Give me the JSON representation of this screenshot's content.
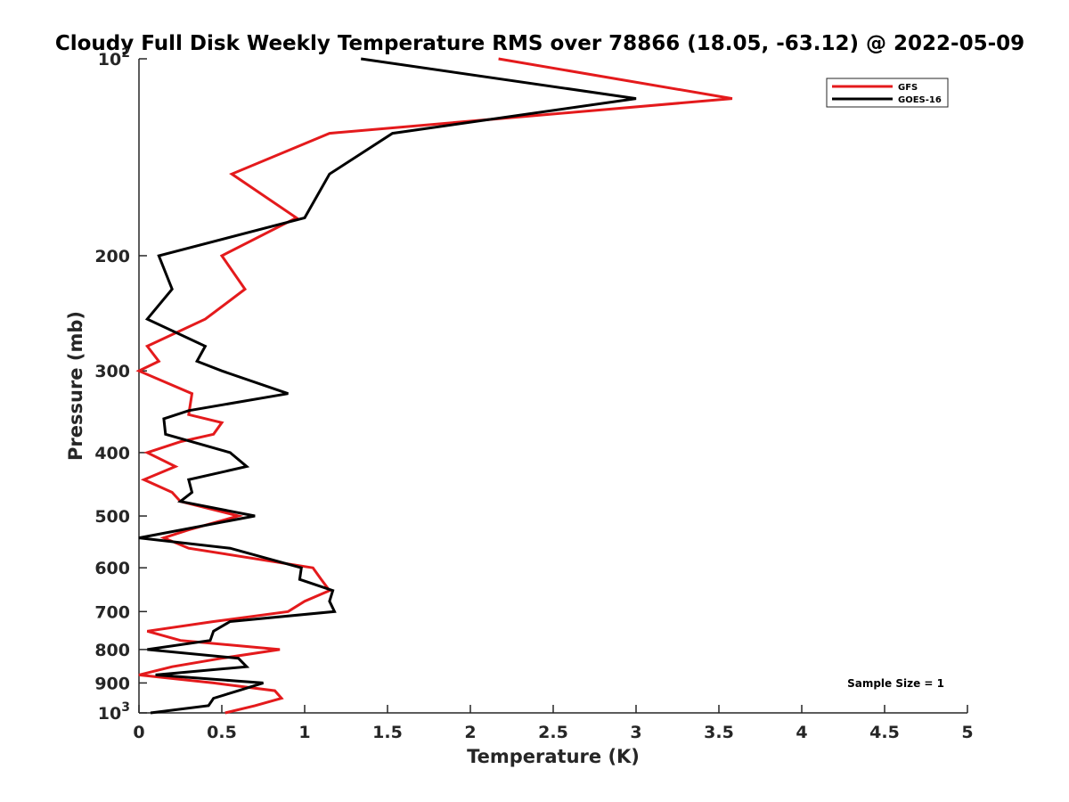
{
  "chart_data": {
    "type": "line",
    "title": "Cloudy Full Disk Weekly Temperature RMS over 78866 (18.05, -63.12) @ 2022-05-09",
    "xlabel": "Temperature (K)",
    "ylabel": "Pressure (mb)",
    "xlim": [
      0,
      5
    ],
    "ylim": [
      100,
      1000
    ],
    "y_scale": "log",
    "y_reversed": true,
    "grid": false,
    "legend_position": "top-right",
    "x_ticks": [
      0,
      0.5,
      1,
      1.5,
      2,
      2.5,
      3,
      3.5,
      4,
      4.5,
      5
    ],
    "x_tick_labels": [
      "0",
      "0.5",
      "1",
      "1.5",
      "2",
      "2.5",
      "3",
      "3.5",
      "4",
      "4.5",
      "5"
    ],
    "y_ticks": [
      {
        "value": 100,
        "base": "10",
        "exp": "2"
      },
      {
        "value": 200,
        "label": "200"
      },
      {
        "value": 300,
        "label": "300"
      },
      {
        "value": 400,
        "label": "400"
      },
      {
        "value": 500,
        "label": "500"
      },
      {
        "value": 600,
        "label": "600"
      },
      {
        "value": 700,
        "label": "700"
      },
      {
        "value": 800,
        "label": "800"
      },
      {
        "value": 900,
        "label": "900"
      },
      {
        "value": 1000,
        "base": "10",
        "exp": "3"
      }
    ],
    "series": [
      {
        "name": "GFS",
        "color": "#e41a1c",
        "points": [
          [
            2.17,
            100
          ],
          [
            3.58,
            115
          ],
          [
            1.15,
            130
          ],
          [
            0.56,
            150
          ],
          [
            0.95,
            175
          ],
          [
            0.5,
            200
          ],
          [
            0.64,
            225
          ],
          [
            0.4,
            250
          ],
          [
            0.05,
            275
          ],
          [
            0.12,
            290
          ],
          [
            0.0,
            300
          ],
          [
            0.32,
            325
          ],
          [
            0.3,
            350
          ],
          [
            0.5,
            360
          ],
          [
            0.45,
            375
          ],
          [
            0.25,
            385
          ],
          [
            0.05,
            400
          ],
          [
            0.22,
            420
          ],
          [
            0.03,
            440
          ],
          [
            0.2,
            460
          ],
          [
            0.25,
            475
          ],
          [
            0.6,
            500
          ],
          [
            0.3,
            525
          ],
          [
            0.15,
            540
          ],
          [
            0.3,
            560
          ],
          [
            1.05,
            600
          ],
          [
            1.1,
            625
          ],
          [
            1.15,
            650
          ],
          [
            1.0,
            675
          ],
          [
            0.9,
            700
          ],
          [
            0.45,
            725
          ],
          [
            0.05,
            750
          ],
          [
            0.25,
            775
          ],
          [
            0.85,
            800
          ],
          [
            0.5,
            825
          ],
          [
            0.2,
            850
          ],
          [
            0.0,
            875
          ],
          [
            0.45,
            900
          ],
          [
            0.82,
            925
          ],
          [
            0.86,
            950
          ],
          [
            0.7,
            975
          ],
          [
            0.52,
            1000
          ]
        ]
      },
      {
        "name": "GOES-16",
        "color": "#000000",
        "points": [
          [
            1.34,
            100
          ],
          [
            3.0,
            115
          ],
          [
            1.53,
            130
          ],
          [
            1.15,
            150
          ],
          [
            1.0,
            175
          ],
          [
            0.12,
            200
          ],
          [
            0.2,
            225
          ],
          [
            0.05,
            250
          ],
          [
            0.4,
            275
          ],
          [
            0.35,
            290
          ],
          [
            0.5,
            300
          ],
          [
            0.9,
            325
          ],
          [
            0.3,
            345
          ],
          [
            0.15,
            355
          ],
          [
            0.16,
            375
          ],
          [
            0.55,
            400
          ],
          [
            0.65,
            420
          ],
          [
            0.3,
            440
          ],
          [
            0.32,
            460
          ],
          [
            0.25,
            475
          ],
          [
            0.7,
            500
          ],
          [
            0.0,
            540
          ],
          [
            0.55,
            560
          ],
          [
            0.98,
            600
          ],
          [
            0.97,
            625
          ],
          [
            1.17,
            650
          ],
          [
            1.15,
            675
          ],
          [
            1.18,
            700
          ],
          [
            0.55,
            725
          ],
          [
            0.45,
            750
          ],
          [
            0.43,
            775
          ],
          [
            0.05,
            800
          ],
          [
            0.6,
            825
          ],
          [
            0.65,
            850
          ],
          [
            0.1,
            875
          ],
          [
            0.75,
            900
          ],
          [
            0.6,
            925
          ],
          [
            0.45,
            950
          ],
          [
            0.42,
            975
          ],
          [
            0.07,
            1000
          ]
        ]
      }
    ],
    "annotation": "Sample Size = 1"
  }
}
